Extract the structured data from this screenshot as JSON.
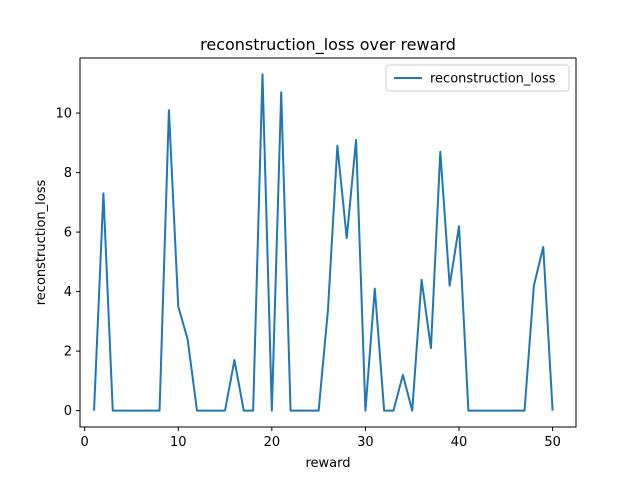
{
  "chart_data": {
    "type": "line",
    "title": "reconstruction_loss over reward",
    "xlabel": "reward",
    "ylabel": "reconstruction_loss",
    "xlim": [
      -0.5,
      52.5
    ],
    "ylim": [
      -0.55,
      11.85
    ],
    "xticks": [
      0,
      10,
      20,
      30,
      40,
      50
    ],
    "yticks": [
      0,
      2,
      4,
      6,
      8,
      10
    ],
    "grid": false,
    "legend": "top-right",
    "series": [
      {
        "name": "reconstruction_loss",
        "color": "#1f77b4",
        "x": [
          1,
          2,
          3,
          4,
          5,
          6,
          7,
          8,
          9,
          10,
          11,
          12,
          13,
          14,
          15,
          16,
          17,
          18,
          19,
          20,
          21,
          22,
          23,
          24,
          25,
          26,
          27,
          28,
          29,
          30,
          31,
          32,
          33,
          34,
          35,
          36,
          37,
          38,
          39,
          40,
          41,
          42,
          43,
          44,
          45,
          46,
          47,
          48,
          49,
          50
        ],
        "y": [
          0,
          7.3,
          0,
          0,
          0,
          0,
          0,
          0,
          10.1,
          3.5,
          2.4,
          0,
          0,
          0,
          0,
          1.7,
          0,
          0,
          11.3,
          0,
          10.7,
          0,
          0,
          0,
          0,
          3.4,
          8.9,
          5.8,
          9.1,
          0,
          4.1,
          0,
          0,
          1.2,
          0,
          4.4,
          2.1,
          8.7,
          4.2,
          6.2,
          0,
          0,
          0,
          0,
          0,
          0,
          0,
          4.2,
          5.5,
          0
        ]
      }
    ]
  }
}
